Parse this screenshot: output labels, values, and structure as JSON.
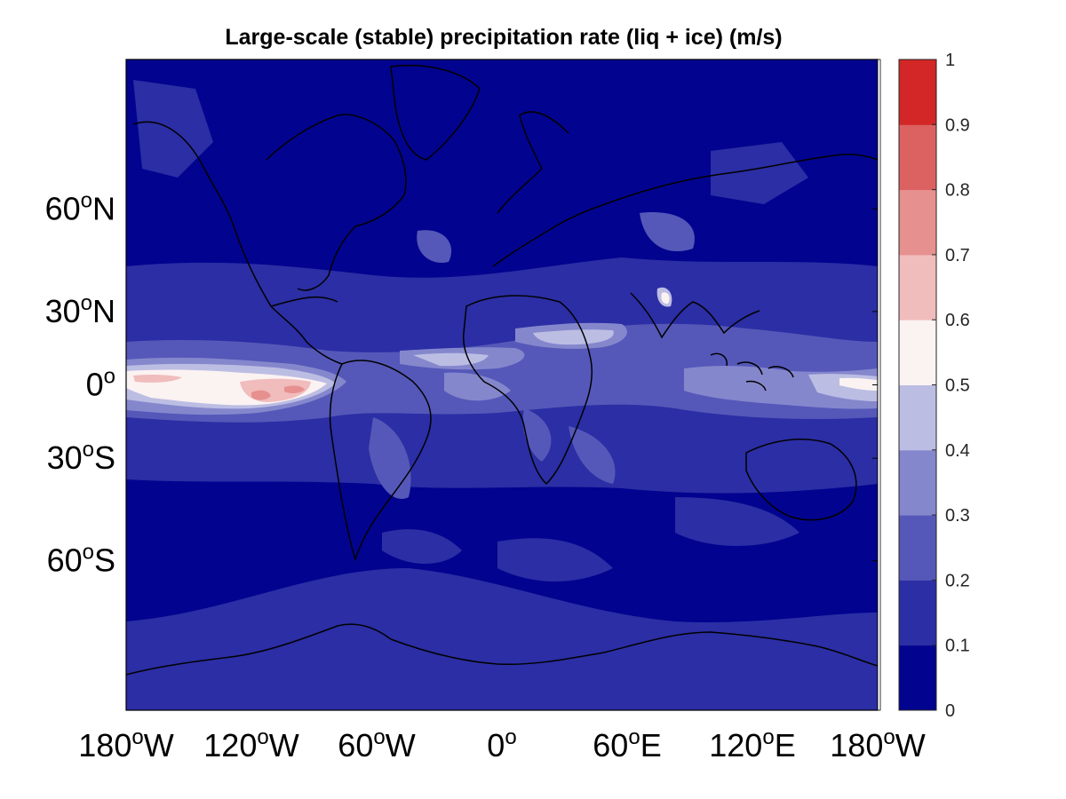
{
  "title": "Large-scale (stable) precipitation rate (liq + ice) (m/s)",
  "map": {
    "projection": "mercator",
    "lon_range": [
      -180,
      180
    ],
    "lat_range": [
      -80,
      80
    ],
    "coastlines": true,
    "lat_ticks": [
      {
        "value": 60,
        "num": "60",
        "suffix": "N"
      },
      {
        "value": 30,
        "num": "30",
        "suffix": "N"
      },
      {
        "value": 0,
        "num": "0",
        "suffix": ""
      },
      {
        "value": -30,
        "num": "30",
        "suffix": "S"
      },
      {
        "value": -60,
        "num": "60",
        "suffix": "S"
      }
    ],
    "lon_ticks": [
      {
        "value": -180,
        "num": "180",
        "suffix": "W"
      },
      {
        "value": -120,
        "num": "120",
        "suffix": "W"
      },
      {
        "value": -60,
        "num": "60",
        "suffix": "W"
      },
      {
        "value": 0,
        "num": "0",
        "suffix": ""
      },
      {
        "value": 60,
        "num": "60",
        "suffix": "E"
      },
      {
        "value": 120,
        "num": "120",
        "suffix": "E"
      },
      {
        "value": 180,
        "num": "180",
        "suffix": "W"
      }
    ],
    "degree_symbol": "o"
  },
  "colorbar": {
    "range": [
      0,
      1
    ],
    "ticks": [
      "0",
      "0.1",
      "0.2",
      "0.3",
      "0.4",
      "0.5",
      "0.6",
      "0.7",
      "0.8",
      "0.9",
      "1"
    ],
    "colors": [
      "#02048f",
      "#2b2ea4",
      "#5558b8",
      "#8587cd",
      "#bcbde3",
      "#fbf2f2",
      "#f1bcbc",
      "#e69090",
      "#dc6262",
      "#d32727"
    ]
  }
}
